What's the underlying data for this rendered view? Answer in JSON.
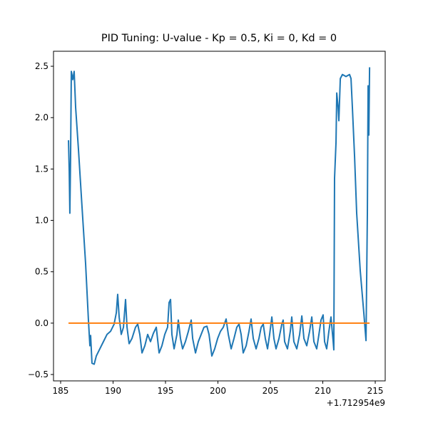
{
  "chart_data": {
    "type": "line",
    "title": "PID Tuning: U-value - Kp = 0.5, Ki = 0, Kd = 0",
    "x_offset_label": "+1.712954e9",
    "xlim": [
      184.32,
      215.95
    ],
    "ylim": [
      -0.562,
      2.646
    ],
    "xticks": [
      185,
      190,
      195,
      200,
      205,
      210,
      215
    ],
    "yticks": [
      {
        "value": -0.5,
        "label": "−0.5"
      },
      {
        "value": 0,
        "label": "0.0"
      },
      0.5,
      {
        "value": 1,
        "label": "1.0"
      },
      1.5,
      {
        "value": 2,
        "label": "2.0"
      },
      2.5
    ],
    "series": [
      {
        "color": "#1f77b4",
        "x": [
          185.75,
          185.82,
          185.88,
          185.95,
          186.02,
          186.16,
          186.29,
          186.43,
          186.7,
          187.04,
          187.38,
          187.65,
          187.79,
          187.86,
          187.99,
          188.2,
          188.4,
          188.74,
          189.08,
          189.42,
          189.76,
          190.1,
          190.31,
          190.44,
          190.58,
          190.78,
          190.99,
          191.19,
          191.33,
          191.53,
          191.8,
          192.14,
          192.35,
          192.55,
          192.76,
          193.03,
          193.3,
          193.57,
          193.84,
          194.12,
          194.39,
          194.66,
          194.93,
          195.2,
          195.34,
          195.48,
          195.61,
          195.82,
          196.09,
          196.22,
          196.43,
          196.63,
          196.9,
          197.18,
          197.45,
          197.59,
          197.86,
          198.13,
          198.4,
          198.67,
          198.95,
          199.15,
          199.42,
          199.69,
          199.97,
          200.24,
          200.51,
          200.78,
          200.99,
          201.26,
          201.53,
          201.8,
          202.01,
          202.21,
          202.41,
          202.69,
          202.96,
          203.16,
          203.37,
          203.64,
          203.91,
          204.12,
          204.32,
          204.52,
          204.73,
          204.93,
          205.14,
          205.34,
          205.54,
          205.82,
          206.09,
          206.22,
          206.36,
          206.63,
          206.9,
          207.04,
          207.24,
          207.52,
          207.79,
          208.0,
          208.2,
          208.47,
          208.74,
          208.95,
          209.15,
          209.42,
          209.63,
          209.83,
          210.03,
          210.17,
          210.37,
          210.58,
          210.78,
          210.99,
          211.05,
          211.12,
          211.26,
          211.33,
          211.46,
          211.53,
          211.67,
          211.87,
          212.21,
          212.55,
          212.69,
          212.82,
          213.03,
          213.23,
          213.57,
          213.91,
          214.12,
          214.25,
          214.32,
          214.39,
          214.46
        ],
        "values": [
          1.78,
          1.48,
          1.07,
          1.62,
          2.45,
          2.37,
          2.45,
          2.1,
          1.69,
          1.13,
          0.58,
          0.03,
          -0.22,
          -0.12,
          -0.39,
          -0.4,
          -0.32,
          -0.25,
          -0.18,
          -0.11,
          -0.08,
          -0.01,
          0.1,
          0.28,
          0.06,
          -0.11,
          -0.04,
          0.23,
          -0.04,
          -0.2,
          -0.15,
          -0.04,
          -0.01,
          -0.11,
          -0.29,
          -0.22,
          -0.11,
          -0.18,
          -0.1,
          -0.04,
          -0.29,
          -0.22,
          -0.11,
          -0.04,
          0.2,
          0.23,
          -0.11,
          -0.25,
          -0.11,
          0.03,
          -0.15,
          -0.25,
          -0.18,
          -0.08,
          0.03,
          -0.15,
          -0.29,
          -0.18,
          -0.11,
          -0.04,
          -0.03,
          -0.11,
          -0.32,
          -0.25,
          -0.15,
          -0.08,
          -0.04,
          0.04,
          -0.11,
          -0.25,
          -0.15,
          -0.04,
          -0.01,
          -0.11,
          -0.29,
          -0.22,
          -0.08,
          0.04,
          -0.15,
          -0.25,
          -0.15,
          -0.04,
          -0.01,
          -0.15,
          -0.25,
          -0.11,
          0.06,
          -0.15,
          -0.25,
          -0.15,
          -0.01,
          0.03,
          -0.18,
          -0.25,
          -0.08,
          0.06,
          -0.18,
          -0.25,
          -0.11,
          0.07,
          -0.15,
          -0.22,
          -0.08,
          0.06,
          -0.18,
          -0.25,
          -0.11,
          0.03,
          0.08,
          -0.18,
          -0.25,
          -0.08,
          0.06,
          -0.18,
          -0.26,
          1.41,
          1.76,
          2.24,
          2.1,
          1.97,
          2.38,
          2.42,
          2.4,
          2.42,
          2.38,
          2.1,
          1.62,
          1.07,
          0.51,
          0.1,
          -0.17,
          1.07,
          2.31,
          1.83,
          2.49
        ]
      },
      {
        "color": "#ff7f0e",
        "x": [
          185.75,
          214.46
        ],
        "values": [
          0,
          0
        ]
      }
    ]
  }
}
